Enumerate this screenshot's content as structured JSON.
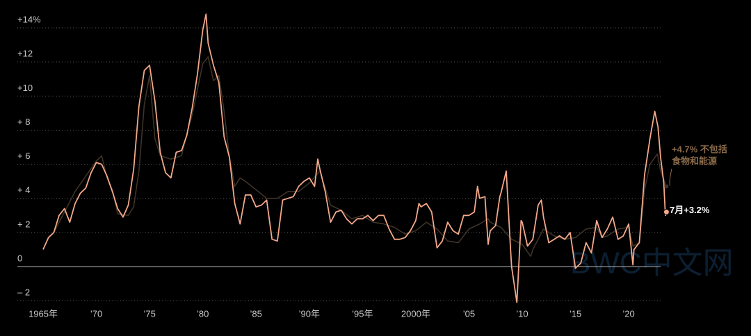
{
  "chart_data": {
    "type": "line",
    "xlim": [
      1963.56,
      2024.96
    ],
    "ylim": [
      -2.28,
      15.63
    ],
    "xticks": [
      {
        "value": 1965,
        "label": "1965年"
      },
      {
        "value": 1970,
        "label": "’70"
      },
      {
        "value": 1975,
        "label": "’75"
      },
      {
        "value": 1980,
        "label": "’80"
      },
      {
        "value": 1985,
        "label": "’85"
      },
      {
        "value": 1990,
        "label": "’90年"
      },
      {
        "value": 1995,
        "label": "’95年"
      },
      {
        "value": 2000,
        "label": "2000年"
      },
      {
        "value": 2005,
        "label": "’05"
      },
      {
        "value": 2010,
        "label": "’10"
      },
      {
        "value": 2015,
        "label": "’15"
      },
      {
        "value": 2020,
        "label": "’20"
      }
    ],
    "yticks": [
      {
        "value": 14,
        "label": "+14%"
      },
      {
        "value": 12,
        "label": "+12"
      },
      {
        "value": 10,
        "label": "+10"
      },
      {
        "value": 8,
        "label": "+ 8"
      },
      {
        "value": 6,
        "label": "+ 6"
      },
      {
        "value": 4,
        "label": "+ 4"
      },
      {
        "value": 2,
        "label": "+ 2"
      },
      0,
      {
        "value": -2,
        "label": "– 2"
      }
    ],
    "grid": true,
    "series": [
      {
        "color": "#3e3327",
        "x": [
          1966,
          1967,
          1968,
          1969,
          1970,
          1970.5,
          1971,
          1971.5,
          1972,
          1973,
          1973.5,
          1974,
          1974.5,
          1975,
          1975.5,
          1976,
          1977,
          1978,
          1978.5,
          1979,
          1980,
          1980.5,
          1981,
          1981.5,
          1982,
          1982.5,
          1983,
          1983.5,
          1984,
          1985,
          1986,
          1987,
          1988,
          1989,
          1990,
          1991,
          1991.5,
          1992,
          1993,
          1994,
          1995,
          1996,
          1997,
          1998,
          1999,
          2000,
          2001,
          2002,
          2003,
          2004,
          2005,
          2006,
          2006.8,
          2007,
          2008,
          2009,
          2010,
          2010.8,
          2011,
          2012,
          2013,
          2014,
          2015,
          2016,
          2017,
          2017.5,
          2018,
          2019,
          2020,
          2020.4,
          2021,
          2021.5,
          2022,
          2022.7,
          2023,
          2023.55
        ],
        "values": [
          2.0,
          3.2,
          4.4,
          5.3,
          6.2,
          6.5,
          5.2,
          4.5,
          3.1,
          3.0,
          3.5,
          5.6,
          9.5,
          11.2,
          7.5,
          6.5,
          6.3,
          6.5,
          7.8,
          8.9,
          11.9,
          12.3,
          10.9,
          11.2,
          9.1,
          6.4,
          4.7,
          5.2,
          5.0,
          4.5,
          4.0,
          4.0,
          4.4,
          4.4,
          4.9,
          5.6,
          4.6,
          3.6,
          3.3,
          2.8,
          3.0,
          2.6,
          2.5,
          2.3,
          1.9,
          2.1,
          2.6,
          2.2,
          1.5,
          1.4,
          2.2,
          2.5,
          2.8,
          2.6,
          2.3,
          1.6,
          1.3,
          0.6,
          1.0,
          2.2,
          1.8,
          1.6,
          1.7,
          2.2,
          2.3,
          1.7,
          1.8,
          2.2,
          2.3,
          1.2,
          1.4,
          4.5,
          6.0,
          6.6,
          5.6,
          4.7
        ]
      },
      {
        "color": "#f4a88a",
        "x": [
          1965,
          1965.5,
          1966,
          1966.5,
          1967,
          1967.5,
          1968,
          1968.5,
          1969,
          1969.5,
          1970,
          1970.5,
          1971,
          1971.5,
          1972,
          1972.5,
          1973,
          1973.5,
          1974,
          1974.5,
          1975,
          1975.5,
          1976,
          1976.5,
          1977,
          1977.5,
          1978,
          1978.5,
          1979,
          1979.5,
          1980,
          1980.3,
          1980.5,
          1981,
          1981.5,
          1982,
          1982.5,
          1983,
          1983.5,
          1984,
          1984.5,
          1985,
          1985.5,
          1986,
          1986.5,
          1987,
          1987.5,
          1988,
          1988.5,
          1989,
          1989.5,
          1990,
          1990.5,
          1990.8,
          1991,
          1991.5,
          1992,
          1992.5,
          1993,
          1993.5,
          1994,
          1994.5,
          1995,
          1995.5,
          1996,
          1996.5,
          1997,
          1997.5,
          1998,
          1998.5,
          1999,
          1999.5,
          2000,
          2000.3,
          2000.5,
          2001,
          2001.5,
          2002,
          2002.5,
          2003,
          2003.5,
          2004,
          2004.5,
          2005,
          2005.5,
          2005.8,
          2006,
          2006.5,
          2006.8,
          2007,
          2007.5,
          2007.9,
          2008,
          2008.5,
          2008.9,
          2009,
          2009.5,
          2009.9,
          2010,
          2010.5,
          2011,
          2011.5,
          2011.8,
          2012,
          2012.5,
          2013,
          2013.5,
          2014,
          2014.5,
          2015,
          2015.5,
          2016,
          2016.5,
          2017,
          2017.5,
          2018,
          2018.5,
          2019,
          2019.5,
          2020,
          2020.4,
          2020.5,
          2021,
          2021.5,
          2022,
          2022.45,
          2022.75,
          2023,
          2023.3,
          2023.45,
          2023.55
        ],
        "values": [
          1.0,
          1.7,
          2.0,
          3.0,
          3.4,
          2.6,
          3.7,
          4.3,
          4.6,
          5.5,
          6.1,
          6.0,
          5.3,
          4.4,
          3.4,
          2.9,
          3.6,
          5.7,
          9.4,
          11.5,
          11.8,
          9.7,
          6.7,
          5.5,
          5.2,
          6.7,
          6.8,
          7.7,
          9.3,
          11.3,
          13.9,
          14.8,
          13.1,
          11.8,
          10.8,
          7.6,
          6.4,
          3.7,
          2.5,
          4.2,
          4.2,
          3.5,
          3.6,
          3.9,
          1.6,
          1.5,
          3.9,
          4.0,
          4.1,
          4.7,
          5.0,
          5.2,
          4.7,
          6.3,
          5.7,
          4.4,
          2.6,
          3.2,
          3.3,
          2.8,
          2.5,
          2.8,
          2.8,
          3.0,
          2.7,
          3.0,
          3.0,
          2.2,
          1.6,
          1.6,
          1.7,
          2.1,
          2.7,
          3.7,
          3.5,
          3.7,
          3.2,
          1.1,
          1.5,
          2.6,
          2.1,
          1.9,
          3.0,
          3.0,
          3.2,
          4.7,
          4.0,
          4.1,
          1.3,
          2.1,
          2.4,
          4.1,
          4.3,
          5.6,
          1.1,
          0.0,
          -2.1,
          2.7,
          2.6,
          1.2,
          1.6,
          3.6,
          3.9,
          2.9,
          1.4,
          1.6,
          1.8,
          1.6,
          2.0,
          -0.1,
          0.2,
          1.4,
          0.8,
          2.7,
          1.7,
          2.2,
          2.9,
          1.6,
          1.8,
          2.5,
          0.1,
          1.0,
          1.4,
          5.4,
          7.5,
          9.1,
          8.2,
          6.4,
          4.9,
          3.0,
          3.2
        ]
      }
    ],
    "annotations": [
      {
        "lines": [
          "+4.7% 不包括",
          "食物和能源"
        ],
        "color": "#8a6a48"
      },
      {
        "text": "7月+3.2%",
        "color": "#ffffff"
      }
    ],
    "watermark": "BWC中文网"
  }
}
